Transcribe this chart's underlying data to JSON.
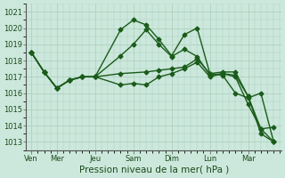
{
  "background_color": "#cce8dc",
  "grid_color": "#aaccbb",
  "line_color": "#1a5c1a",
  "marker": "D",
  "markersize": 2.5,
  "linewidth": 1.0,
  "xlabel": "Pression niveau de la mer( hPa )",
  "xlabel_fontsize": 7.5,
  "ylim": [
    1012.5,
    1021.5
  ],
  "yticks": [
    1013,
    1014,
    1015,
    1016,
    1017,
    1018,
    1019,
    1020,
    1021
  ],
  "ytick_fontsize": 6,
  "xtick_labels": [
    "Ven",
    "Mer",
    "Jeu",
    "Sam",
    "Dim",
    "Lun",
    "Mar"
  ],
  "series": [
    {
      "x": [
        0.0,
        0.5,
        1.0,
        1.5,
        2.0,
        2.5,
        3.5,
        4.0,
        4.5,
        5.0,
        5.5,
        6.0,
        6.5,
        7.0,
        7.5,
        8.0,
        8.5,
        9.0,
        9.5
      ],
      "y": [
        1018.5,
        1017.3,
        1016.3,
        1016.8,
        1017.0,
        1017.0,
        1019.9,
        1020.5,
        1020.2,
        1019.3,
        1018.3,
        1019.6,
        1020.0,
        1017.2,
        1017.1,
        1016.0,
        1015.7,
        1016.0,
        1013.0
      ]
    },
    {
      "x": [
        0.0,
        0.5,
        1.0,
        1.5,
        2.0,
        2.5,
        3.5,
        4.0,
        4.5,
        5.0,
        5.5,
        6.0,
        6.5,
        7.0,
        7.5,
        8.0,
        8.5,
        9.0,
        9.5
      ],
      "y": [
        1018.5,
        1017.3,
        1016.3,
        1016.8,
        1017.0,
        1017.0,
        1018.3,
        1019.0,
        1019.9,
        1019.0,
        1018.25,
        1018.7,
        1018.25,
        1017.1,
        1017.2,
        1017.0,
        1015.3,
        1013.8,
        1013.0
      ]
    },
    {
      "x": [
        0.0,
        0.5,
        1.0,
        1.5,
        2.0,
        2.5,
        3.5,
        4.5,
        5.0,
        5.5,
        6.0,
        6.5,
        7.0,
        7.5,
        8.0,
        8.5,
        9.0,
        9.5
      ],
      "y": [
        1018.5,
        1017.3,
        1016.3,
        1016.8,
        1017.0,
        1017.0,
        1017.2,
        1017.3,
        1017.4,
        1017.5,
        1017.6,
        1018.1,
        1017.2,
        1017.3,
        1017.3,
        1015.8,
        1013.8,
        1013.9
      ]
    },
    {
      "x": [
        0.0,
        0.5,
        1.0,
        1.5,
        2.0,
        2.5,
        3.5,
        4.0,
        4.5,
        5.0,
        5.5,
        6.0,
        6.5,
        7.0,
        7.5,
        8.0,
        8.5,
        9.0,
        9.5
      ],
      "y": [
        1018.5,
        1017.3,
        1016.3,
        1016.8,
        1017.0,
        1017.0,
        1016.5,
        1016.6,
        1016.5,
        1017.0,
        1017.2,
        1017.5,
        1017.9,
        1017.0,
        1017.2,
        1017.1,
        1015.8,
        1013.5,
        1013.0
      ]
    }
  ],
  "day_tick_x": [
    0.0,
    1.0,
    2.5,
    4.0,
    5.5,
    7.0,
    8.5
  ],
  "xlim": [
    -0.2,
    9.8
  ]
}
